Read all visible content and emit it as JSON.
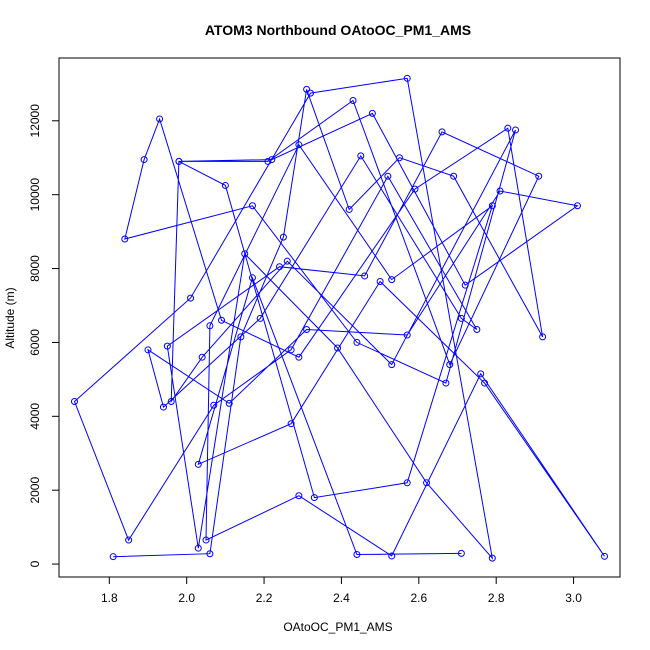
{
  "chart_data": {
    "type": "line",
    "title": "ATOM3 Northbound OAtoOC_PM1_AMS",
    "xlabel": "OAtoOC_PM1_AMS",
    "ylabel": "Altitude (m)",
    "xlim": [
      1.67,
      3.12
    ],
    "ylim": [
      -350,
      13700
    ],
    "x_ticks": [
      1.8,
      2.0,
      2.2,
      2.4,
      2.6,
      2.8,
      3.0
    ],
    "x_tick_labels": [
      "1.8",
      "2.0",
      "2.2",
      "2.4",
      "2.6",
      "2.8",
      "3.0"
    ],
    "y_ticks": [
      0,
      2000,
      4000,
      6000,
      8000,
      10000,
      12000
    ],
    "y_tick_labels": [
      "0",
      "2000",
      "4000",
      "6000",
      "8000",
      "10000",
      "12000"
    ],
    "grid": false,
    "marker": "open-circle",
    "color": "#0000ff",
    "series": [
      {
        "x": [
          1.81,
          2.06,
          2.14,
          2.25,
          2.31,
          2.42,
          2.55,
          2.69,
          2.92,
          2.83,
          2.59,
          2.29,
          2.09,
          1.93,
          1.89,
          1.84,
          2.17,
          2.44,
          2.67,
          2.85,
          2.53,
          2.26,
          2.04,
          1.96,
          1.98,
          2.22,
          2.48,
          2.72,
          3.01,
          2.81,
          2.57,
          2.31,
          2.11,
          1.9,
          1.94,
          2.19,
          2.45,
          2.71,
          2.75,
          2.52,
          2.27,
          2.07,
          1.85,
          1.71,
          2.01,
          2.32,
          2.57,
          2.79,
          2.62,
          2.39,
          2.15,
          2.03,
          1.95,
          2.24,
          2.46,
          2.66,
          2.91,
          2.68,
          2.43,
          2.21,
          1.98,
          2.1,
          2.33,
          2.57,
          2.79,
          2.53,
          2.29,
          2.06,
          2.05,
          2.29,
          2.53,
          2.76,
          3.08,
          2.77,
          2.5,
          2.27,
          2.03,
          2.17,
          2.44,
          2.71
        ],
        "y": [
          200,
          280,
          6150,
          8850,
          12850,
          9600,
          11000,
          10500,
          6150,
          11800,
          10150,
          5600,
          6600,
          12050,
          10950,
          8800,
          9700,
          6000,
          4900,
          11750,
          5400,
          8200,
          5600,
          4400,
          10900,
          10950,
          12200,
          7550,
          9700,
          10100,
          6200,
          6350,
          4350,
          5800,
          4250,
          6650,
          11050,
          6650,
          6350,
          10500,
          5800,
          4300,
          650,
          4400,
          7200,
          12750,
          13150,
          160,
          2200,
          5850,
          8400,
          430,
          5900,
          8050,
          7800,
          11700,
          10500,
          5400,
          12550,
          10900,
          10900,
          10250,
          1800,
          2200,
          9700,
          7700,
          11350,
          6450,
          650,
          1850,
          220,
          5150,
          210,
          4900,
          7650,
          3800,
          2700,
          7750,
          260,
          290
        ]
      }
    ]
  }
}
